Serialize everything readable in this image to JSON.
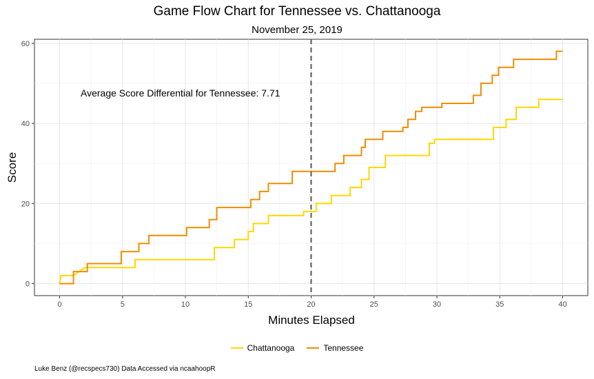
{
  "chart_data": {
    "type": "line",
    "title": "Game Flow Chart for Tennessee vs. Chattanooga",
    "subtitle": "November 25, 2019",
    "xlabel": "Minutes Elapsed",
    "ylabel": "Score",
    "xlim": [
      -2,
      42
    ],
    "ylim": [
      -3,
      61
    ],
    "xticks": [
      0,
      5,
      10,
      15,
      20,
      25,
      30,
      35,
      40
    ],
    "yticks": [
      0,
      20,
      40,
      60
    ],
    "grid": true,
    "legend_position": "bottom",
    "halftime_x": 20,
    "annotation": "Average Score Differential for Tennessee: 7.71",
    "series": [
      {
        "name": "Chattanooga",
        "color": "#FFD700",
        "step": true,
        "points": [
          [
            0,
            0
          ],
          [
            0.1,
            2
          ],
          [
            1.1,
            2
          ],
          [
            2.0,
            4
          ],
          [
            6.0,
            4
          ],
          [
            6.0,
            6
          ],
          [
            12.3,
            6
          ],
          [
            12.3,
            9
          ],
          [
            13.9,
            9
          ],
          [
            13.9,
            11
          ],
          [
            15.0,
            11
          ],
          [
            15.0,
            13
          ],
          [
            15.4,
            13
          ],
          [
            15.4,
            15
          ],
          [
            16.6,
            15
          ],
          [
            16.6,
            17
          ],
          [
            19.4,
            17
          ],
          [
            19.4,
            18
          ],
          [
            20.4,
            18
          ],
          [
            20.4,
            20
          ],
          [
            21.6,
            20
          ],
          [
            21.6,
            22
          ],
          [
            23.1,
            22
          ],
          [
            23.1,
            24
          ],
          [
            24.0,
            24
          ],
          [
            24.0,
            26
          ],
          [
            24.6,
            26
          ],
          [
            24.6,
            29
          ],
          [
            25.9,
            29
          ],
          [
            25.9,
            32
          ],
          [
            29.4,
            32
          ],
          [
            29.4,
            35
          ],
          [
            29.8,
            35
          ],
          [
            29.8,
            36
          ],
          [
            34.5,
            36
          ],
          [
            34.5,
            39
          ],
          [
            35.5,
            39
          ],
          [
            35.5,
            41
          ],
          [
            36.3,
            41
          ],
          [
            36.3,
            44
          ],
          [
            38.1,
            44
          ],
          [
            38.1,
            46
          ],
          [
            40,
            46
          ]
        ]
      },
      {
        "name": "Tennessee",
        "color": "#F08C00",
        "step": true,
        "points": [
          [
            0,
            0
          ],
          [
            1.1,
            0
          ],
          [
            1.1,
            3
          ],
          [
            2.0,
            3
          ],
          [
            2.2,
            3
          ],
          [
            2.2,
            5
          ],
          [
            4.9,
            5
          ],
          [
            4.9,
            8
          ],
          [
            6.3,
            8
          ],
          [
            6.3,
            10
          ],
          [
            7.1,
            10
          ],
          [
            7.1,
            12
          ],
          [
            10.1,
            12
          ],
          [
            10.1,
            14
          ],
          [
            11.9,
            14
          ],
          [
            11.9,
            16
          ],
          [
            12.5,
            16
          ],
          [
            12.5,
            19
          ],
          [
            15.2,
            19
          ],
          [
            15.2,
            21
          ],
          [
            15.9,
            21
          ],
          [
            15.9,
            23
          ],
          [
            16.6,
            23
          ],
          [
            16.6,
            25
          ],
          [
            18.5,
            25
          ],
          [
            18.5,
            28
          ],
          [
            21.9,
            28
          ],
          [
            21.9,
            30
          ],
          [
            22.6,
            30
          ],
          [
            22.6,
            32
          ],
          [
            24.0,
            32
          ],
          [
            24.0,
            34
          ],
          [
            24.3,
            34
          ],
          [
            24.3,
            36
          ],
          [
            25.7,
            36
          ],
          [
            25.7,
            38
          ],
          [
            27.3,
            38
          ],
          [
            27.3,
            39
          ],
          [
            27.7,
            39
          ],
          [
            27.7,
            41
          ],
          [
            28.3,
            41
          ],
          [
            28.3,
            43
          ],
          [
            28.8,
            43
          ],
          [
            28.8,
            44
          ],
          [
            30.4,
            44
          ],
          [
            30.4,
            45
          ],
          [
            32.9,
            45
          ],
          [
            32.9,
            47
          ],
          [
            33.5,
            47
          ],
          [
            33.5,
            50
          ],
          [
            34.4,
            50
          ],
          [
            34.4,
            52
          ],
          [
            34.9,
            52
          ],
          [
            34.9,
            54
          ],
          [
            36.1,
            54
          ],
          [
            36.1,
            56
          ],
          [
            39.5,
            56
          ],
          [
            39.5,
            58
          ],
          [
            40,
            58
          ]
        ]
      }
    ]
  },
  "caption": "Luke Benz (@recspecs730) Data Accessed via ncaahoopR"
}
